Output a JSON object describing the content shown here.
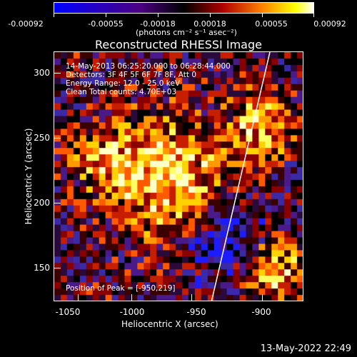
{
  "colorbar": {
    "ticks": [
      "-0.00092",
      "-0.00055",
      "-0.00018",
      "0.00018",
      "0.00055",
      "0.00092"
    ],
    "units": "(photons cm⁻² s⁻¹ asec⁻²)"
  },
  "title": "Reconstructed RHESSI Image",
  "info": {
    "line1": "14-May-2013 06:25:20.000 to 06:28:44.000",
    "line2": "Detectors: 3F 4F 5F 6F 7F 8F, Att 0",
    "line3": "Energy Range: 12.0 - 25.0 keV",
    "line4": "Clean     Total counts: 4.70E+03",
    "peak": "Position of Peak = [-950,219]"
  },
  "axes": {
    "xlabel": "Heliocentric X (arcsec)",
    "ylabel": "Heliocentric Y (arcsec)",
    "xticks": [
      "-1050",
      "-1000",
      "-950",
      "-900"
    ],
    "yticks": [
      "300",
      "250",
      "200",
      "150"
    ]
  },
  "footer": "13-May-2022 22:49"
}
